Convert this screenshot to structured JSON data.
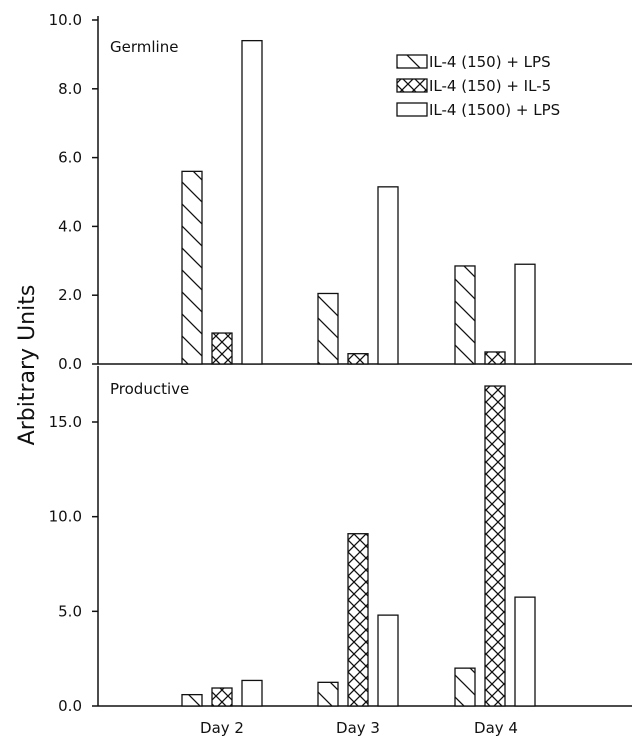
{
  "chart_data": {
    "type": "bar",
    "ylabel": "Arbitrary Units",
    "categories": [
      "Day 2",
      "Day 3",
      "Day 4"
    ],
    "legend": {
      "placement": "top-right",
      "entries": [
        {
          "label": "IL-4 (150) + LPS",
          "pattern": "diagonal"
        },
        {
          "label": "IL-4 (150) + IL-5",
          "pattern": "crosshatch"
        },
        {
          "label": "IL-4 (1500) + LPS",
          "pattern": "open"
        }
      ]
    },
    "panels": [
      {
        "title": "Germline",
        "ylim": [
          0,
          10
        ],
        "yticks": [
          0,
          2,
          4,
          6,
          8,
          10
        ],
        "ytick_labels": [
          "0.0",
          "2.0",
          "4.0",
          "6.0",
          "8.0",
          "10.0"
        ],
        "series": [
          {
            "name": "IL-4 (150) + LPS",
            "values": [
              5.6,
              2.05,
              2.85
            ]
          },
          {
            "name": "IL-4 (150) + IL-5",
            "values": [
              0.9,
              0.3,
              0.35
            ]
          },
          {
            "name": "IL-4 (1500) + LPS",
            "values": [
              9.4,
              5.15,
              2.9
            ]
          }
        ]
      },
      {
        "title": "Productive",
        "ylim": [
          0,
          17.5
        ],
        "yticks": [
          0,
          5,
          10,
          15
        ],
        "ytick_labels": [
          "0.0",
          "5.0",
          "10.0",
          "15.0"
        ],
        "series": [
          {
            "name": "IL-4 (150) + LPS",
            "values": [
              0.6,
              1.25,
              2.0
            ]
          },
          {
            "name": "IL-4 (150) + IL-5",
            "values": [
              0.95,
              9.1,
              16.9
            ]
          },
          {
            "name": "IL-4 (1500) + LPS",
            "values": [
              1.35,
              4.8,
              5.75
            ]
          }
        ]
      }
    ]
  }
}
